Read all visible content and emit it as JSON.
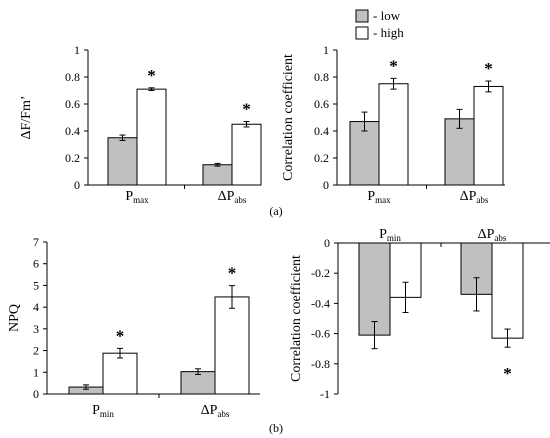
{
  "legend": {
    "low_label": "- low",
    "high_label": "- high",
    "low_color": "#c0c0c0",
    "high_color": "#ffffff"
  },
  "panel_labels": [
    "(a)",
    "(b)"
  ],
  "chart_data": [
    {
      "type": "bar",
      "panel": "a-left",
      "ylabel": "ΔF/Fm’",
      "ylim": [
        0,
        1
      ],
      "yticks": [
        0,
        0.2,
        0.4,
        0.6,
        0.8,
        1
      ],
      "categories": [
        {
          "main": "P",
          "sub": "max"
        },
        {
          "main": "ΔP",
          "sub": "abs"
        }
      ],
      "series": [
        {
          "name": "low",
          "values": [
            0.35,
            0.15
          ],
          "errors": [
            0.02,
            0.01
          ]
        },
        {
          "name": "high",
          "values": [
            0.71,
            0.45
          ],
          "errors": [
            0.01,
            0.02
          ]
        }
      ],
      "significance": [
        {
          "category": 0,
          "series": "high",
          "mark": "*"
        },
        {
          "category": 1,
          "series": "high",
          "mark": "*"
        }
      ]
    },
    {
      "type": "bar",
      "panel": "a-right",
      "ylabel": "Correlation coefficient",
      "ylim": [
        0,
        1
      ],
      "yticks": [
        0,
        0.2,
        0.4,
        0.6,
        0.8,
        1
      ],
      "categories": [
        {
          "main": "P",
          "sub": "max"
        },
        {
          "main": "ΔP",
          "sub": "abs"
        }
      ],
      "series": [
        {
          "name": "low",
          "values": [
            0.47,
            0.49
          ],
          "errors": [
            0.07,
            0.07
          ]
        },
        {
          "name": "high",
          "values": [
            0.75,
            0.73
          ],
          "errors": [
            0.04,
            0.04
          ]
        }
      ],
      "significance": [
        {
          "category": 0,
          "series": "high",
          "mark": "*"
        },
        {
          "category": 1,
          "series": "high",
          "mark": "*"
        }
      ]
    },
    {
      "type": "bar",
      "panel": "b-left",
      "ylabel": "NPQ",
      "ylim": [
        0,
        7
      ],
      "yticks": [
        0,
        1,
        2,
        3,
        4,
        5,
        6,
        7
      ],
      "categories": [
        {
          "main": "P",
          "sub": "min"
        },
        {
          "main": "ΔP",
          "sub": "abs"
        }
      ],
      "series": [
        {
          "name": "low",
          "values": [
            0.32,
            1.03
          ],
          "errors": [
            0.1,
            0.13
          ]
        },
        {
          "name": "high",
          "values": [
            1.88,
            4.47
          ],
          "errors": [
            0.22,
            0.52
          ]
        }
      ],
      "significance": [
        {
          "category": 0,
          "series": "high",
          "mark": "*"
        },
        {
          "category": 1,
          "series": "high",
          "mark": "*"
        }
      ]
    },
    {
      "type": "bar",
      "panel": "b-right",
      "ylabel": "Correlation coefficient",
      "ylim": [
        -1,
        0
      ],
      "yticks": [
        0,
        -0.2,
        -0.4,
        -0.6,
        -0.8,
        -1
      ],
      "categories": [
        {
          "main": "P",
          "sub": "min"
        },
        {
          "main": "ΔP",
          "sub": "abs"
        }
      ],
      "series": [
        {
          "name": "low",
          "values": [
            -0.61,
            -0.34
          ],
          "errors": [
            0.09,
            0.11
          ]
        },
        {
          "name": "high",
          "values": [
            -0.36,
            -0.63
          ],
          "errors": [
            0.1,
            0.06
          ]
        }
      ],
      "significance": [
        {
          "category": 1,
          "series": "high",
          "mark": "*"
        }
      ]
    }
  ]
}
